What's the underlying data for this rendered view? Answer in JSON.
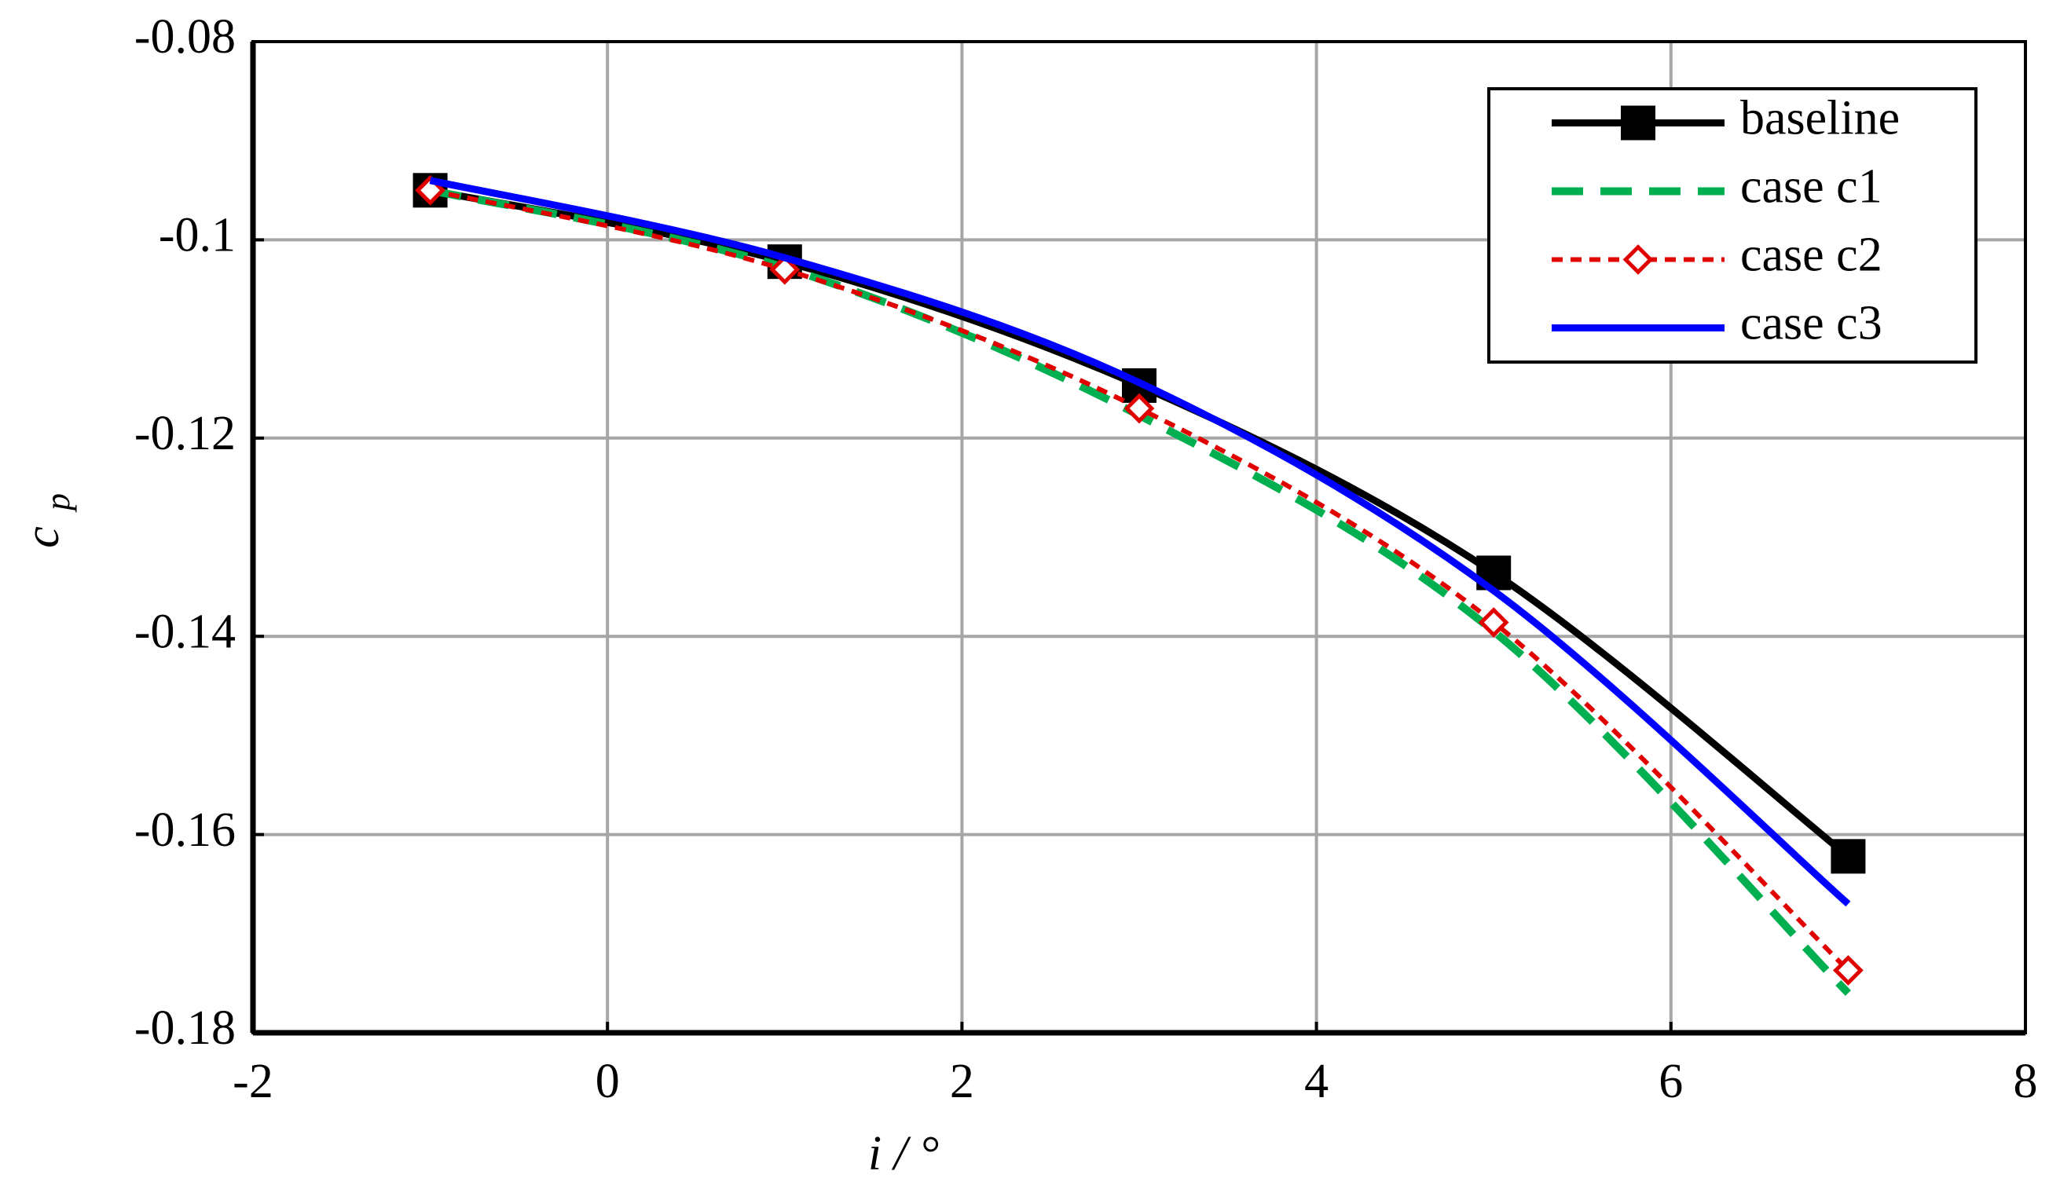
{
  "chart_data": {
    "type": "line",
    "x_label": "i / °",
    "y_label": "c",
    "y_label_subscript": "p",
    "x": [
      -1,
      1,
      3,
      5,
      7
    ],
    "series": [
      {
        "name": "baseline",
        "color": "#000000",
        "dash": "solid",
        "marker": "square",
        "values": [
          -0.095,
          -0.1022,
          -0.1147,
          -0.1336,
          -0.1622
        ]
      },
      {
        "name": "case c1",
        "color": "#00b050",
        "dash": "long",
        "marker": "none",
        "values": [
          -0.095,
          -0.1028,
          -0.1177,
          -0.1395,
          -0.176
        ]
      },
      {
        "name": "case c2",
        "color": "#e00000",
        "dash": "short",
        "marker": "diamond",
        "values": [
          -0.095,
          -0.103,
          -0.117,
          -0.1386,
          -0.1737
        ]
      },
      {
        "name": "case c3",
        "color": "#0000ff",
        "dash": "solid",
        "marker": "none",
        "values": [
          -0.094,
          -0.1018,
          -0.1144,
          -0.1354,
          -0.167
        ]
      }
    ],
    "xlim": [
      -2,
      8
    ],
    "xticks": [
      -2,
      0,
      2,
      4,
      6,
      8
    ],
    "ylim": [
      -0.18,
      -0.08
    ],
    "yticks": [
      -0.08,
      -0.1,
      -0.12,
      -0.14,
      -0.16,
      -0.18
    ],
    "grid": true,
    "legend": "upper-right"
  }
}
